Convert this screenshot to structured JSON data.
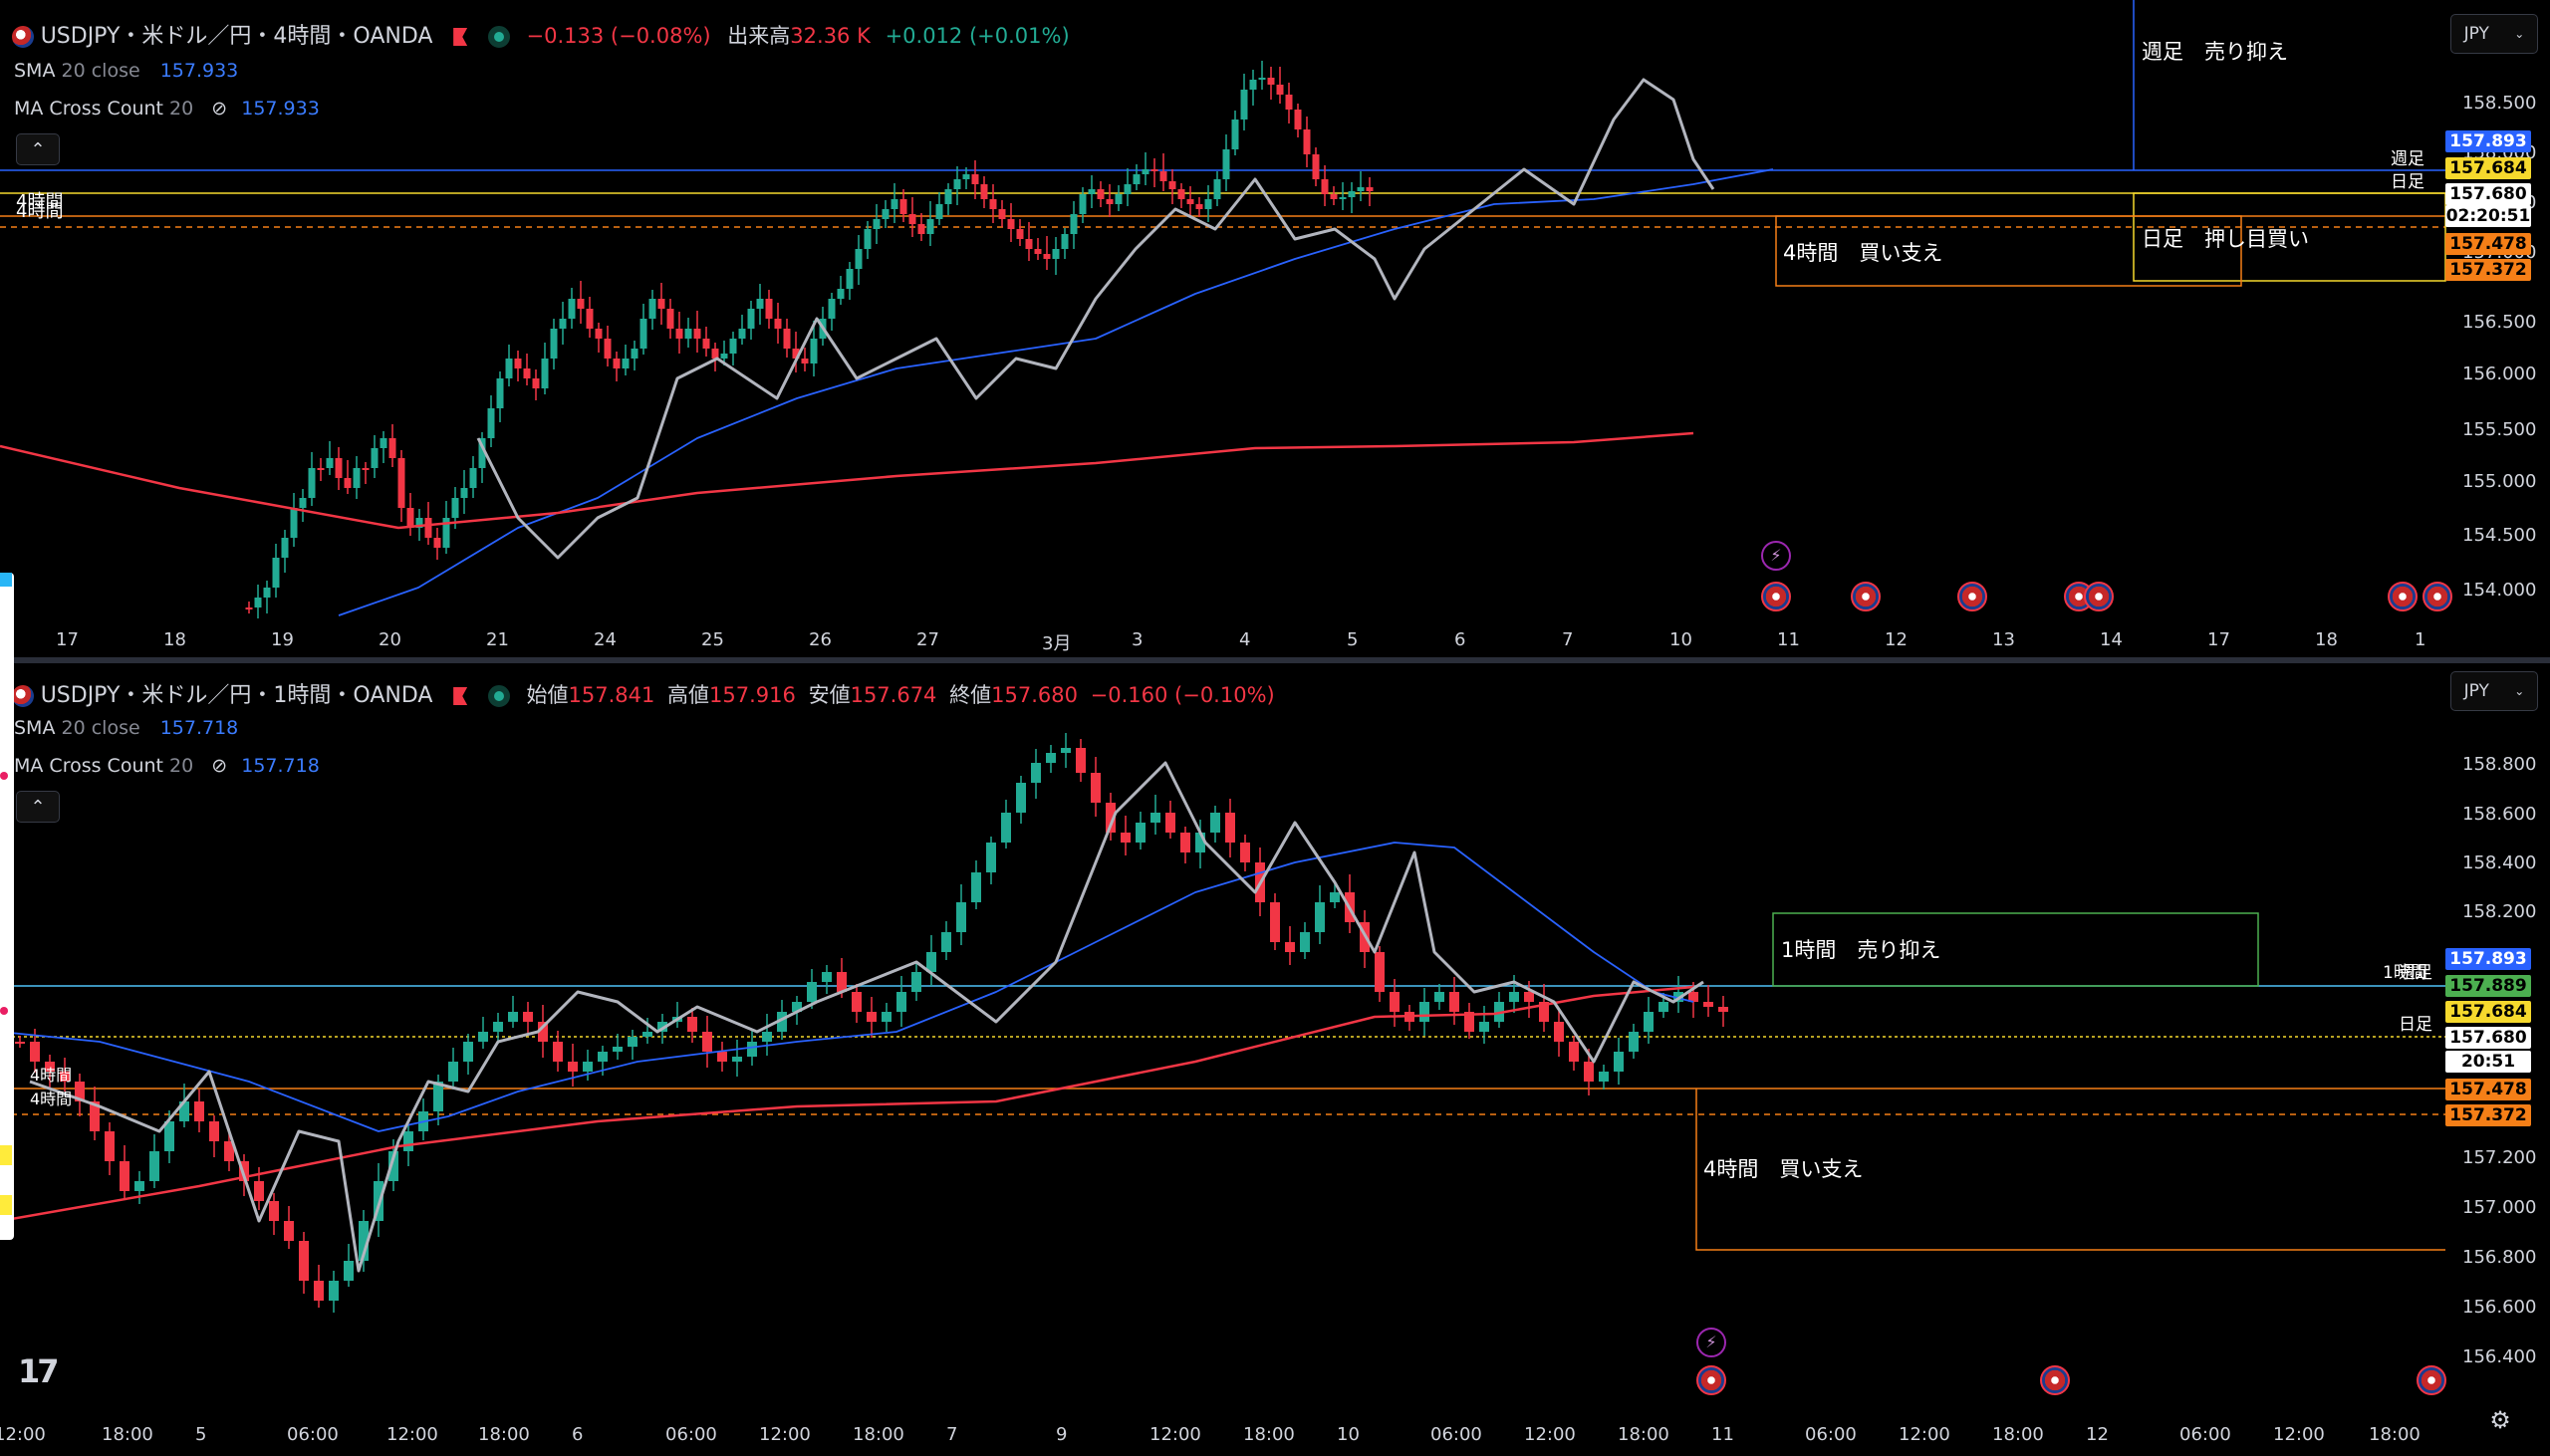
{
  "top": {
    "symbol": "USDJPY・米ドル／円・4時間・OANDA",
    "change": "−0.133 (−0.08%)",
    "volume_label": "出来高",
    "volume_value": "32.36 K",
    "volume_change": "+0.012 (+0.01%)",
    "sma_label": "SMA",
    "sma_params": "20 close",
    "sma_value": "157.933",
    "macc_label": "MA Cross Count",
    "macc_params": "20",
    "macc_value": "157.933",
    "currency": "JPY",
    "price_axis": [
      "158.500",
      "158.000",
      "157.500",
      "157.000",
      "156.500",
      "156.000",
      "155.500",
      "155.000",
      "154.500",
      "154.000"
    ],
    "time_axis": [
      "17",
      "18",
      "19",
      "20",
      "21",
      "24",
      "25",
      "26",
      "27",
      "3月",
      "3",
      "4",
      "5",
      "6",
      "7",
      "10",
      "11",
      "12",
      "13",
      "14",
      "17",
      "18",
      "1"
    ],
    "price_tags": [
      {
        "text": "157.893",
        "bg": "#2962ff",
        "fg": "#ffffff"
      },
      {
        "text": "157.684",
        "bg": "#f6d92d",
        "fg": "#000000"
      },
      {
        "text": "157.680",
        "bg": "#ffffff",
        "fg": "#000000"
      },
      {
        "text": "02:20:51",
        "bg": "#ffffff",
        "fg": "#000000"
      },
      {
        "text": "157.478",
        "bg": "#f57f17",
        "fg": "#000000"
      },
      {
        "text": "157.372",
        "bg": "#f57f17",
        "fg": "#000000"
      }
    ],
    "line_labels": {
      "weekly": "週足",
      "daily": "日足",
      "h4": "4時間"
    },
    "zones": {
      "weekly_sell": "週足　売り抑え",
      "daily_buy": "日足　押し目買い",
      "h4_support": "4時間　買い支え"
    }
  },
  "bottom": {
    "symbol": "USDJPY・米ドル／円・1時間・OANDA",
    "open_label": "始値",
    "open_value": "157.841",
    "high_label": "高値",
    "high_value": "157.916",
    "low_label": "安値",
    "low_value": "157.674",
    "close_label": "終値",
    "close_value": "157.680",
    "change": "−0.160 (−0.10%)",
    "sma_label": "SMA",
    "sma_params": "20 close",
    "sma_value": "157.718",
    "macc_label": "MA Cross Count",
    "macc_params": "20",
    "macc_value": "157.718",
    "currency": "JPY",
    "price_axis": [
      "158.800",
      "158.600",
      "158.400",
      "158.200",
      "157.200",
      "157.000",
      "156.800",
      "156.600",
      "156.400"
    ],
    "time_axis": [
      "12:00",
      "18:00",
      "5",
      "06:00",
      "12:00",
      "18:00",
      "6",
      "06:00",
      "12:00",
      "18:00",
      "7",
      "9",
      "12:00",
      "18:00",
      "10",
      "06:00",
      "12:00",
      "18:00",
      "11",
      "06:00",
      "12:00",
      "18:00",
      "12",
      "06:00",
      "12:00",
      "18:00"
    ],
    "price_tags": [
      {
        "text": "157.893",
        "bg": "#2962ff",
        "fg": "#ffffff"
      },
      {
        "text": "157.889",
        "bg": "#4caf50",
        "fg": "#000000"
      },
      {
        "text": "157.684",
        "bg": "#f6d92d",
        "fg": "#000000"
      },
      {
        "text": "157.680",
        "bg": "#ffffff",
        "fg": "#000000"
      },
      {
        "text": "20:51",
        "bg": "#ffffff",
        "fg": "#000000"
      },
      {
        "text": "157.478",
        "bg": "#f57f17",
        "fg": "#000000"
      },
      {
        "text": "157.372",
        "bg": "#f57f17",
        "fg": "#000000"
      }
    ],
    "line_labels": {
      "h1": "1時間",
      "weekly": "週足",
      "daily": "日足",
      "h4": "4時間"
    },
    "zones": {
      "h1_sell": "1時間　売り抑え",
      "h4_support": "4時間　買い支え"
    }
  },
  "colors": {
    "up": "#22ab94",
    "down": "#f23645",
    "sma": "#2962ff",
    "ma_long": "#f23645",
    "zigzag": "#b2b5be"
  }
}
